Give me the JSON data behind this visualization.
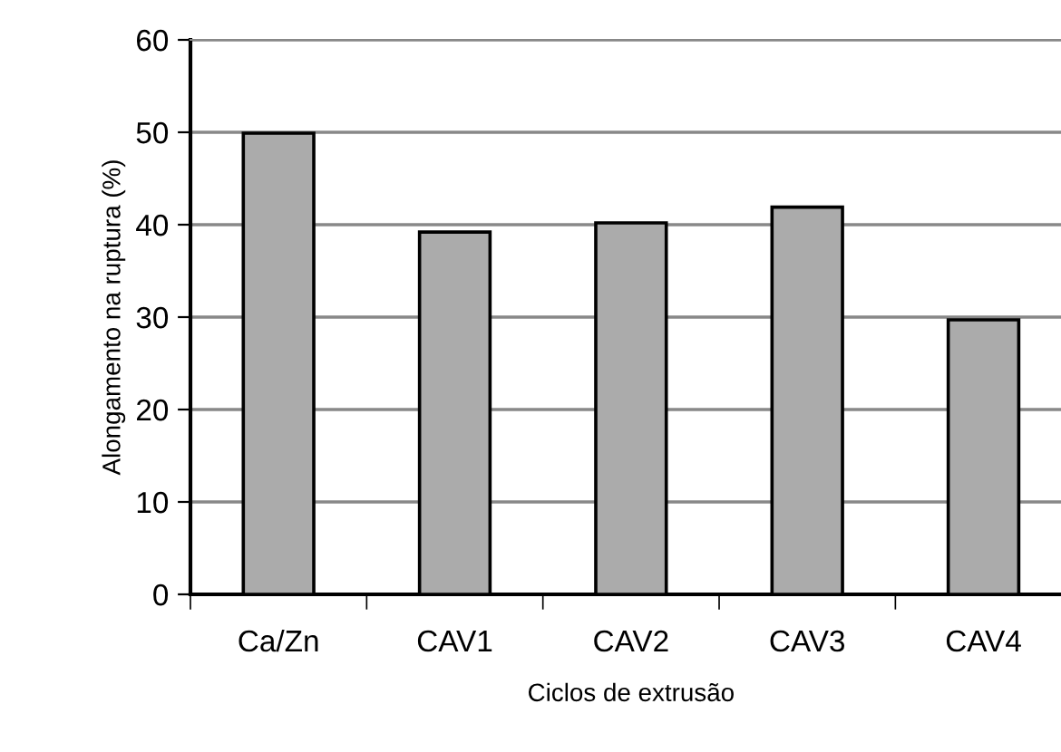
{
  "chart_data": {
    "type": "bar",
    "xlabel": "Ciclos de extrusão",
    "ylabel": "Alongamento na ruptura (%)",
    "categories": [
      "Ca/Zn",
      "CAV1",
      "CAV2",
      "CAV3",
      "CAV4"
    ],
    "values": [
      49.9,
      39.2,
      40.2,
      41.9,
      29.7
    ],
    "color": "#ababab",
    "ylim": [
      0,
      60
    ],
    "yticks": [
      0,
      10,
      20,
      30,
      40,
      50,
      60
    ],
    "grid": "y",
    "legend": false
  }
}
